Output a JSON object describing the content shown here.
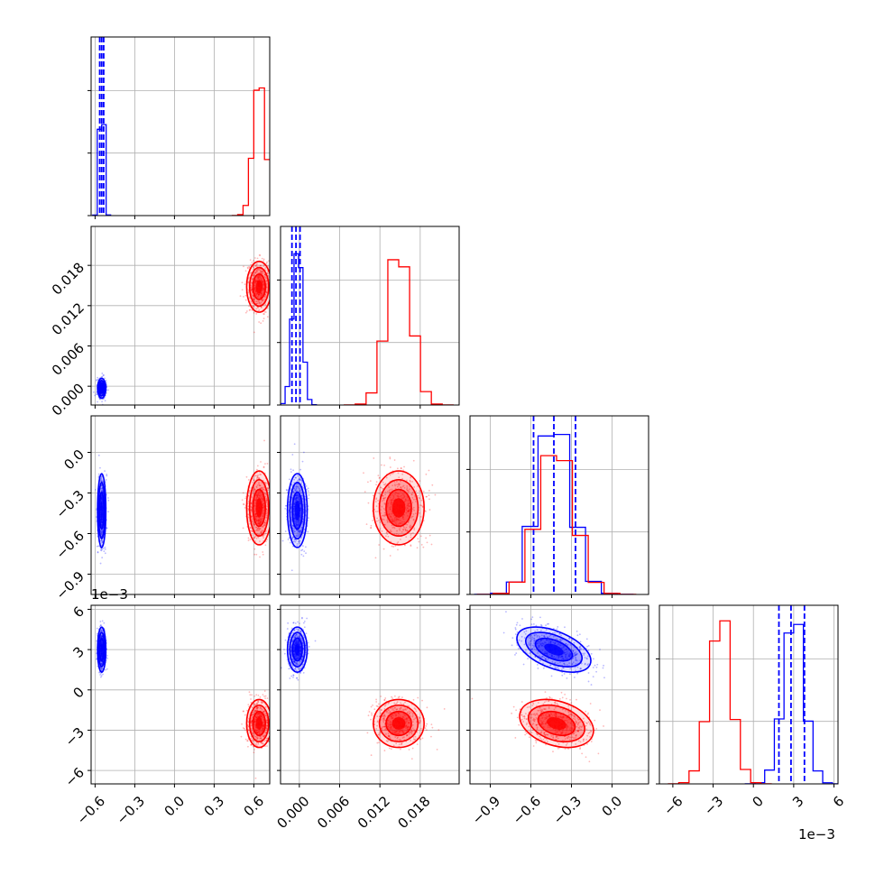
{
  "chart_data": {
    "type": "corner",
    "params": [
      {
        "ticks": [
          "−0.6",
          "−0.3",
          "0.0",
          "0.3",
          "0.6"
        ],
        "tick_values": [
          -0.6,
          -0.3,
          0.0,
          0.3,
          0.6
        ],
        "range": [
          -0.63,
          0.72
        ],
        "multiplier": ""
      },
      {
        "ticks": [
          "0.000",
          "0.006",
          "0.012",
          "0.018"
        ],
        "tick_values": [
          0.0,
          0.006,
          0.012,
          0.018
        ],
        "range": [
          -0.0028,
          0.0238
        ],
        "multiplier": ""
      },
      {
        "ticks": [
          "−0.9",
          "−0.6",
          "−0.3",
          "0.0"
        ],
        "tick_values": [
          -0.9,
          -0.6,
          -0.3,
          0.0
        ],
        "range": [
          -1.05,
          0.27
        ],
        "multiplier": ""
      },
      {
        "ticks": [
          "−6",
          "−3",
          "0",
          "3",
          "6"
        ],
        "tick_values": [
          -6,
          -3,
          0,
          3,
          6
        ],
        "range": [
          -7.0,
          6.3
        ],
        "multiplier": "1e−3"
      }
    ],
    "colors": {
      "A": "#0000ff",
      "B": "#ff0000"
    },
    "series": [
      {
        "color": "#0000ff",
        "mean": [
          -0.55,
          -0.0003,
          -0.43,
          3.0
        ],
        "sigma": [
          0.015,
          0.0007,
          0.13,
          0.8
        ],
        "corr": [
          [
            1,
            0,
            0,
            0
          ],
          [
            0,
            1,
            0,
            0
          ],
          [
            0,
            0,
            1,
            -0.5
          ],
          [
            0,
            0,
            -0.5,
            1
          ]
        ],
        "quantiles": [
          [
            -0.565,
            -0.55,
            -0.535
          ],
          [
            -0.0011,
            -0.0005,
            0.0001
          ],
          [
            -0.58,
            -0.43,
            -0.27
          ],
          [
            1.9,
            2.8,
            3.8
          ]
        ],
        "hist_peaks": [
          1.0,
          1.0,
          1.0,
          1.0
        ]
      },
      {
        "color": "#ff0000",
        "mean": [
          0.64,
          0.0148,
          -0.41,
          -2.5
        ],
        "sigma": [
          0.045,
          0.0018,
          0.13,
          0.85
        ],
        "corr": [
          [
            1,
            0,
            0,
            0
          ],
          [
            0,
            1,
            0,
            0
          ],
          [
            0,
            0,
            1,
            -0.3
          ],
          [
            0,
            0,
            -0.3,
            1
          ]
        ],
        "quantiles": null,
        "hist_peaks": [
          0.8,
          0.95,
          0.95,
          1.0
        ]
      }
    ],
    "multiplier_labels": {
      "y_row4": "1e−3",
      "x_col4": "1e−3"
    }
  }
}
